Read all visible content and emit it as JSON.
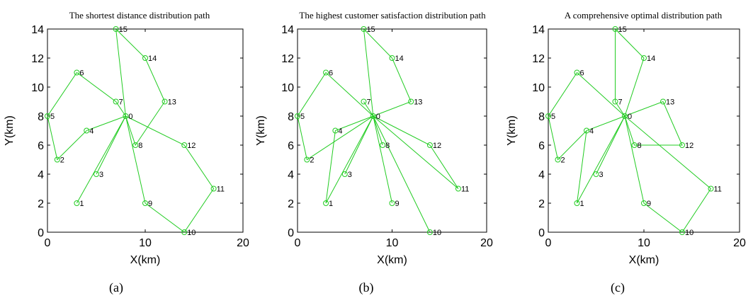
{
  "chart_data": [
    {
      "type": "line",
      "title": "The shortest distance distribution path",
      "xlabel": "X(km)",
      "ylabel": "Y(km)",
      "caption": "(a)",
      "xlim": [
        0,
        20
      ],
      "ylim": [
        0,
        14
      ],
      "xticks": [
        "0",
        "10",
        "20"
      ],
      "yticks": [
        "0",
        "2",
        "4",
        "6",
        "8",
        "10",
        "12",
        "14"
      ],
      "grid": false,
      "nodes": [
        {
          "id": "0",
          "x": 8,
          "y": 8
        },
        {
          "id": "1",
          "x": 3,
          "y": 2
        },
        {
          "id": "2",
          "x": 1,
          "y": 5
        },
        {
          "id": "3",
          "x": 5,
          "y": 4
        },
        {
          "id": "4",
          "x": 4,
          "y": 7
        },
        {
          "id": "5",
          "x": 0,
          "y": 8
        },
        {
          "id": "6",
          "x": 3,
          "y": 11
        },
        {
          "id": "7",
          "x": 7,
          "y": 9
        },
        {
          "id": "8",
          "x": 9,
          "y": 6
        },
        {
          "id": "9",
          "x": 10,
          "y": 2
        },
        {
          "id": "10",
          "x": 14,
          "y": 0
        },
        {
          "id": "11",
          "x": 17,
          "y": 3
        },
        {
          "id": "12",
          "x": 14,
          "y": 6
        },
        {
          "id": "13",
          "x": 12,
          "y": 9
        },
        {
          "id": "14",
          "x": 10,
          "y": 12
        },
        {
          "id": "15",
          "x": 7,
          "y": 14
        }
      ],
      "routes": [
        [
          "0",
          "4",
          "2",
          "5",
          "6",
          "7",
          "0"
        ],
        [
          "0",
          "1",
          "0"
        ],
        [
          "0",
          "3",
          "0"
        ],
        [
          "0",
          "9",
          "10",
          "11",
          "12",
          "0"
        ],
        [
          "0",
          "15",
          "14",
          "13",
          "8",
          "0"
        ]
      ]
    },
    {
      "type": "line",
      "title": "The highest customer satisfaction distribution path",
      "xlabel": "X(km)",
      "ylabel": "Y(km)",
      "caption": "(b)",
      "xlim": [
        0,
        20
      ],
      "ylim": [
        0,
        14
      ],
      "xticks": [
        "0",
        "10",
        "20"
      ],
      "yticks": [
        "0",
        "2",
        "4",
        "6",
        "8",
        "10",
        "12",
        "14"
      ],
      "grid": false,
      "nodes": [
        {
          "id": "0",
          "x": 8,
          "y": 8
        },
        {
          "id": "1",
          "x": 3,
          "y": 2
        },
        {
          "id": "2",
          "x": 1,
          "y": 5
        },
        {
          "id": "3",
          "x": 5,
          "y": 4
        },
        {
          "id": "4",
          "x": 4,
          "y": 7
        },
        {
          "id": "5",
          "x": 0,
          "y": 8
        },
        {
          "id": "6",
          "x": 3,
          "y": 11
        },
        {
          "id": "7",
          "x": 7,
          "y": 9
        },
        {
          "id": "8",
          "x": 9,
          "y": 6
        },
        {
          "id": "9",
          "x": 10,
          "y": 2
        },
        {
          "id": "10",
          "x": 14,
          "y": 0
        },
        {
          "id": "11",
          "x": 17,
          "y": 3
        },
        {
          "id": "12",
          "x": 14,
          "y": 6
        },
        {
          "id": "13",
          "x": 12,
          "y": 9
        },
        {
          "id": "14",
          "x": 10,
          "y": 12
        },
        {
          "id": "15",
          "x": 7,
          "y": 14
        }
      ],
      "routes": [
        [
          "0",
          "2",
          "5",
          "6",
          "0"
        ],
        [
          "0",
          "4",
          "1",
          "0"
        ],
        [
          "0",
          "3",
          "0"
        ],
        [
          "0",
          "7",
          "0"
        ],
        [
          "0",
          "8",
          "0"
        ],
        [
          "0",
          "9",
          "0"
        ],
        [
          "0",
          "10",
          "0"
        ],
        [
          "0",
          "11",
          "12",
          "0"
        ],
        [
          "0",
          "15",
          "14",
          "13",
          "0"
        ]
      ]
    },
    {
      "type": "line",
      "title": "A comprehensive optimal distribution path",
      "xlabel": "X(km)",
      "ylabel": "Y(km)",
      "caption": "(c)",
      "xlim": [
        0,
        20
      ],
      "ylim": [
        0,
        14
      ],
      "xticks": [
        "0",
        "10",
        "20"
      ],
      "yticks": [
        "0",
        "2",
        "4",
        "6",
        "8",
        "10",
        "12",
        "14"
      ],
      "grid": false,
      "nodes": [
        {
          "id": "0",
          "x": 8,
          "y": 8
        },
        {
          "id": "1",
          "x": 3,
          "y": 2
        },
        {
          "id": "2",
          "x": 1,
          "y": 5
        },
        {
          "id": "3",
          "x": 5,
          "y": 4
        },
        {
          "id": "4",
          "x": 4,
          "y": 7
        },
        {
          "id": "5",
          "x": 0,
          "y": 8
        },
        {
          "id": "6",
          "x": 3,
          "y": 11
        },
        {
          "id": "7",
          "x": 7,
          "y": 9
        },
        {
          "id": "8",
          "x": 9,
          "y": 6
        },
        {
          "id": "9",
          "x": 10,
          "y": 2
        },
        {
          "id": "10",
          "x": 14,
          "y": 0
        },
        {
          "id": "11",
          "x": 17,
          "y": 3
        },
        {
          "id": "12",
          "x": 14,
          "y": 6
        },
        {
          "id": "13",
          "x": 12,
          "y": 9
        },
        {
          "id": "14",
          "x": 10,
          "y": 12
        },
        {
          "id": "15",
          "x": 7,
          "y": 14
        }
      ],
      "routes": [
        [
          "0",
          "6",
          "5",
          "2",
          "4",
          "0"
        ],
        [
          "0",
          "7",
          "15",
          "14",
          "0"
        ],
        [
          "0",
          "13",
          "12",
          "8",
          "0"
        ],
        [
          "0",
          "1",
          "4"
        ],
        [
          "0",
          "3",
          "0"
        ],
        [
          "0",
          "9",
          "10",
          "11",
          "0"
        ]
      ]
    }
  ],
  "colors": {
    "route": "#22cc22",
    "axis": "#000000"
  }
}
